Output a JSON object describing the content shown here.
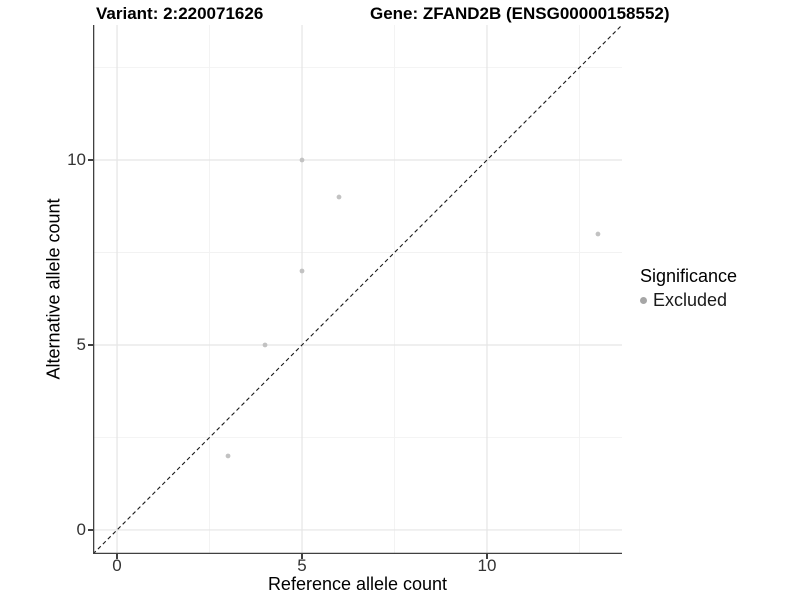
{
  "chart_data": {
    "type": "scatter",
    "title_variant": "Variant: 2:220071626",
    "title_gene": "Gene: ZFAND2B (ENSG00000158552)",
    "xlabel": "Reference allele count",
    "ylabel": "Alternative allele count",
    "xlim": [
      -0.65,
      13.65
    ],
    "ylim": [
      -0.65,
      13.65
    ],
    "x_major_ticks": [
      0,
      5,
      10
    ],
    "y_major_ticks": [
      0,
      5,
      10
    ],
    "x_minor_gridlines": [
      2.5,
      7.5,
      12.5
    ],
    "y_minor_gridlines": [
      2.5,
      7.5,
      12.5
    ],
    "grid": "major and minor, light gray on white",
    "identity_line": {
      "slope": 1,
      "intercept": 0,
      "style": "dashed",
      "color": "#1a1a1a"
    },
    "series": [
      {
        "name": "Excluded",
        "color": "#c2c2c2",
        "points": [
          {
            "x": 3,
            "y": 2
          },
          {
            "x": 4,
            "y": 5
          },
          {
            "x": 5,
            "y": 7
          },
          {
            "x": 5,
            "y": 10
          },
          {
            "x": 6,
            "y": 9
          },
          {
            "x": 13,
            "y": 8
          }
        ]
      }
    ],
    "legend": {
      "title": "Significance",
      "position": "right",
      "items": [
        {
          "label": "Excluded",
          "color": "#a6a6a6"
        }
      ]
    },
    "colors": {
      "axis_line": "#404040",
      "major_grid": "#e5e5e5",
      "minor_grid": "#f2f2f2",
      "tick_label": "#333333",
      "point": "#c2c2c2",
      "legend_point": "#a6a6a6",
      "identity_line": "#1a1a1a",
      "background": "#ffffff"
    },
    "point_radius_px": 2.4
  }
}
